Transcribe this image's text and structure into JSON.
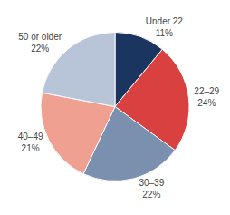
{
  "chart_data": {
    "type": "pie",
    "categories": [
      "Under 22",
      "22–29",
      "30–39",
      "40–49",
      "50 or older"
    ],
    "values": [
      11,
      24,
      22,
      21,
      22
    ],
    "value_labels": [
      "11%",
      "24%",
      "22%",
      "21%",
      "22%"
    ],
    "data_labels": true,
    "colors": [
      "#1a3560",
      "#d94040",
      "#7b8fae",
      "#f0a090",
      "#b8c4d8"
    ]
  }
}
